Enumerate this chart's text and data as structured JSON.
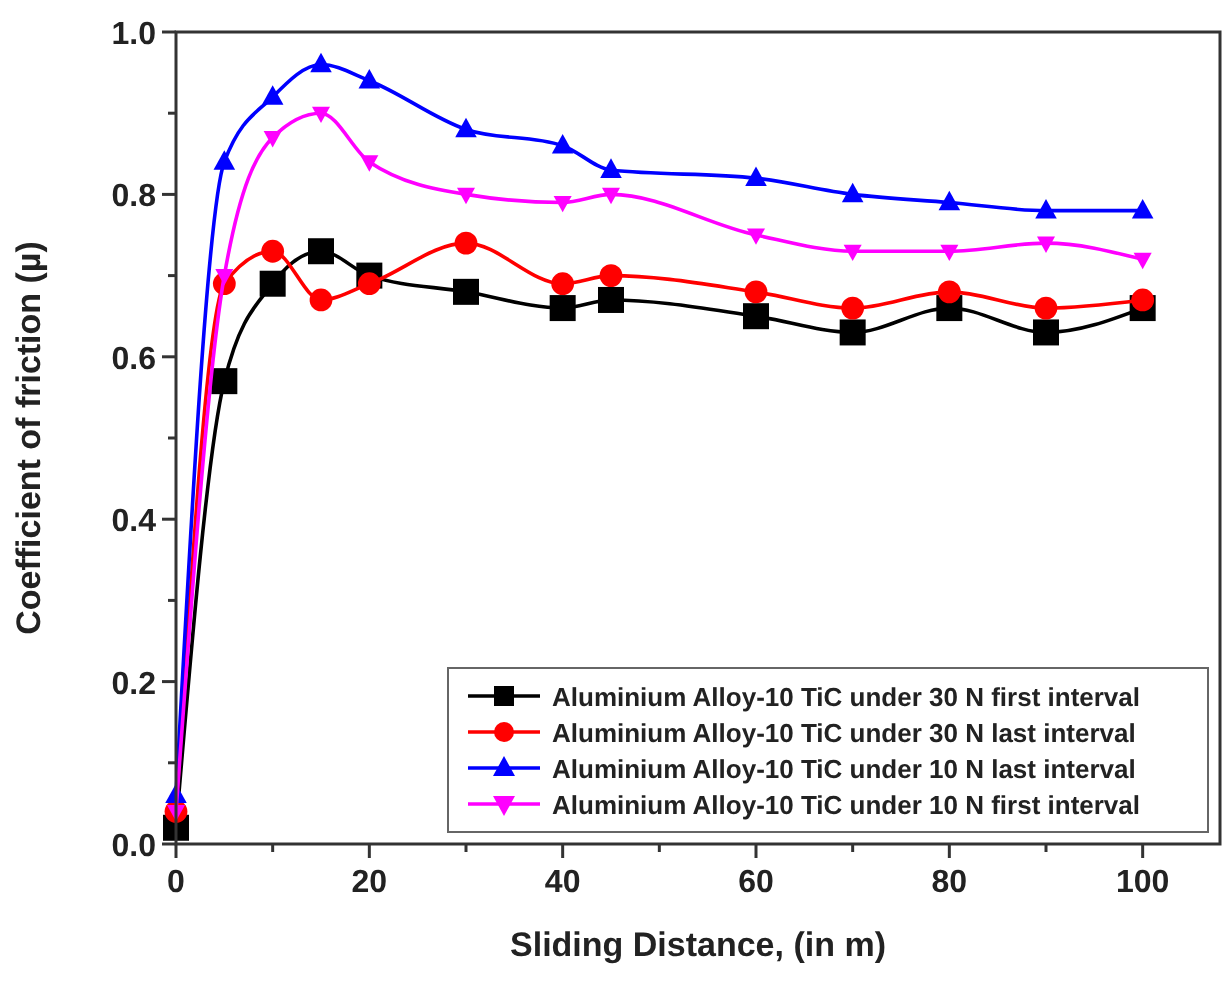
{
  "chart_data": {
    "type": "line",
    "xlabel": "Sliding Distance, (in m)",
    "ylabel": "Coefficient of friction (µ)",
    "x": [
      0,
      5,
      10,
      15,
      20,
      30,
      40,
      45,
      60,
      70,
      80,
      90,
      100
    ],
    "series": [
      {
        "name": "Aluminium Alloy-10 TiC under 30 N first interval",
        "color": "#000000",
        "marker": "square",
        "values": [
          0.02,
          0.57,
          0.69,
          0.73,
          0.7,
          0.68,
          0.66,
          0.67,
          0.65,
          0.63,
          0.66,
          0.63,
          0.66
        ]
      },
      {
        "name": "Aluminium Alloy-10 TiC under 30 N last interval",
        "color": "#ff0000",
        "marker": "circle",
        "values": [
          0.04,
          0.69,
          0.73,
          0.67,
          0.69,
          0.74,
          0.69,
          0.7,
          0.68,
          0.66,
          0.68,
          0.66,
          0.67
        ]
      },
      {
        "name": "Aluminium Alloy-10 TiC under 10 N last interval",
        "color": "#0000ff",
        "marker": "triangle",
        "values": [
          0.06,
          0.84,
          0.92,
          0.96,
          0.94,
          0.88,
          0.86,
          0.83,
          0.82,
          0.8,
          0.79,
          0.78,
          0.78
        ]
      },
      {
        "name": "Aluminium Alloy-10 TiC under 10 N first interval",
        "color": "#ff00ff",
        "marker": "triangle-down",
        "values": [
          0.04,
          0.7,
          0.87,
          0.9,
          0.84,
          0.8,
          0.79,
          0.8,
          0.75,
          0.73,
          0.73,
          0.74,
          0.72
        ]
      }
    ],
    "xlim": [
      0,
      108
    ],
    "ylim": [
      0,
      1.0
    ],
    "xticks": [
      0,
      {
        "value": 10,
        "label": null
      },
      20,
      {
        "value": 30,
        "label": null
      },
      40,
      {
        "value": 50,
        "label": null
      },
      60,
      {
        "value": 70,
        "label": null
      },
      80,
      {
        "value": 90,
        "label": null
      },
      100
    ],
    "yticks": [
      {
        "value": 0,
        "label": "0.0"
      },
      {
        "value": 0.1,
        "label": null
      },
      0.2,
      {
        "value": 0.3,
        "label": null
      },
      0.4,
      {
        "value": 0.5,
        "label": null
      },
      0.6,
      {
        "value": 0.7,
        "label": null
      },
      0.8,
      {
        "value": 0.9,
        "label": null
      },
      {
        "value": 1.0,
        "label": "1.0"
      }
    ],
    "legend": "bottom right",
    "grid": false
  }
}
